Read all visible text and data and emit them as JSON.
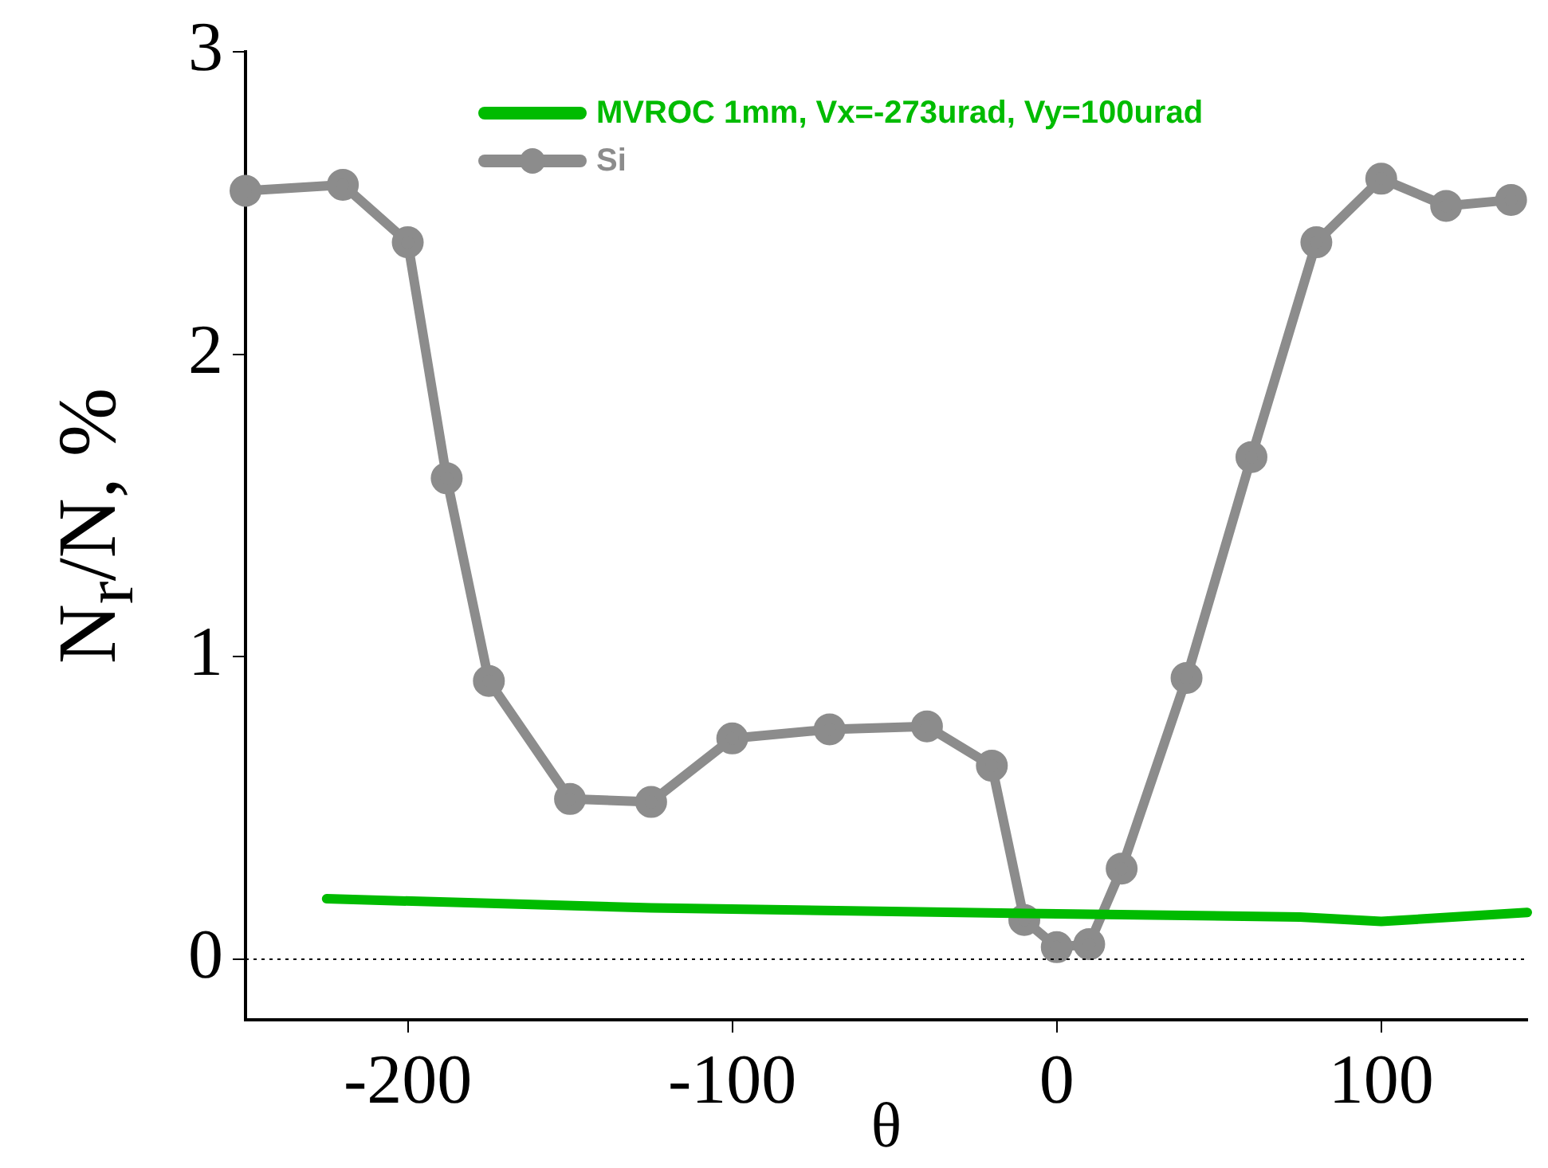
{
  "chart_data": {
    "type": "line",
    "xlabel": "θ",
    "ylabel": "N$_{r}$/N, %",
    "xlim": [
      -250,
      145
    ],
    "xticks": [
      -200,
      -100,
      0,
      100
    ],
    "ylim": [
      -0.2,
      3
    ],
    "yticks": [
      0,
      1,
      2,
      3
    ],
    "grid": false,
    "legend": "top",
    "line_style": "solid",
    "ref_lines": [
      {
        "axis": "y",
        "value": 0,
        "color": "#000000",
        "line_style": "dotted"
      }
    ],
    "series": [
      {
        "name": "MVROC 1mm, Vx=-273urad, Vy=100urad",
        "color": "#00bb00",
        "marker": "none",
        "x": [
          -225,
          -125,
          0,
          75,
          100,
          145
        ],
        "values": [
          0.2,
          0.17,
          0.15,
          0.14,
          0.125,
          0.155
        ]
      },
      {
        "name": "Si",
        "color": "#8c8c8c",
        "marker": "circle",
        "x": [
          -250,
          -220,
          -200,
          -188,
          -175,
          -150,
          -125,
          -100,
          -70,
          -40,
          -20,
          -10,
          0,
          10,
          20,
          40,
          60,
          80,
          100,
          120,
          140
        ],
        "values": [
          2.54,
          2.56,
          2.37,
          1.59,
          0.92,
          0.53,
          0.52,
          0.73,
          0.76,
          0.77,
          0.64,
          0.13,
          0.04,
          0.05,
          0.3,
          0.93,
          1.66,
          2.37,
          2.58,
          2.49,
          2.51
        ]
      }
    ]
  }
}
